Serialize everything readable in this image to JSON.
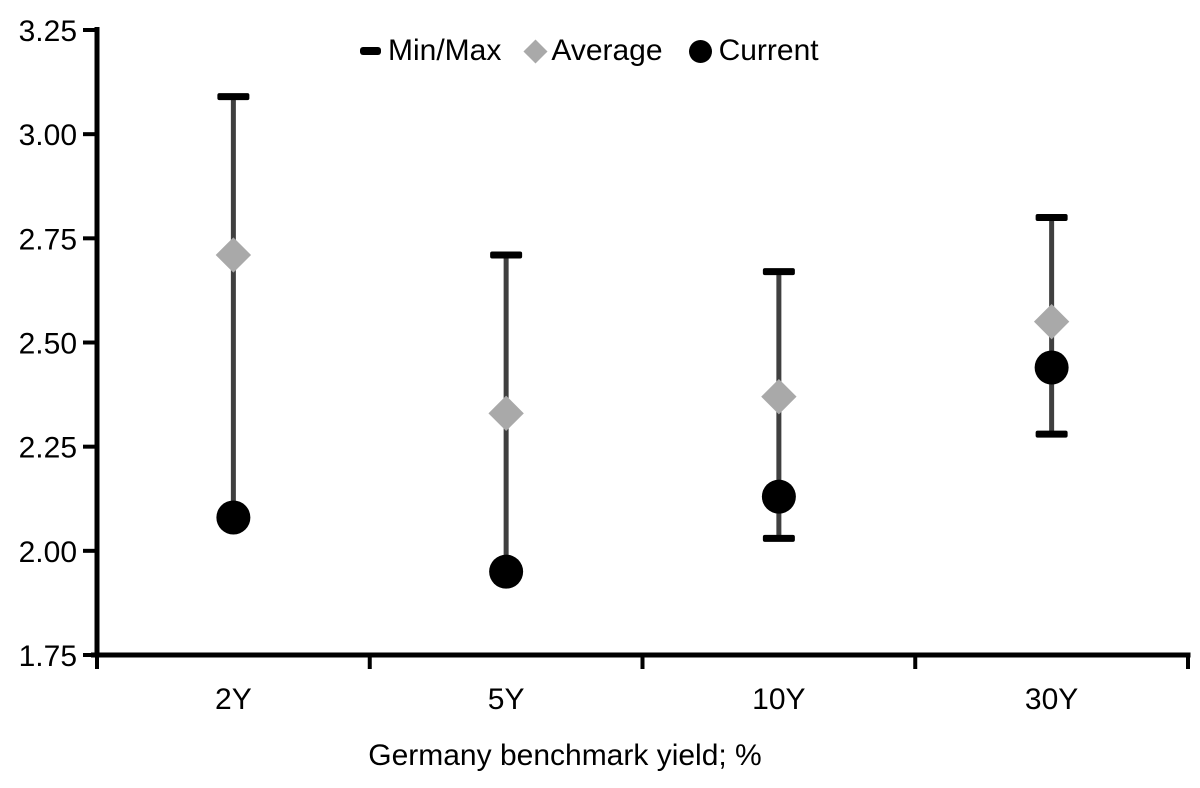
{
  "chart_data": {
    "type": "scatter",
    "variant": "min-max-range",
    "title": "",
    "xlabel": "Germany benchmark yield; %",
    "ylabel": "",
    "categories": [
      "2Y",
      "5Y",
      "10Y",
      "30Y"
    ],
    "series": [
      {
        "name": "Min/Max",
        "role": "range",
        "marker": "dash",
        "min": [
          2.08,
          1.95,
          2.03,
          2.28
        ],
        "max": [
          3.09,
          2.71,
          2.67,
          2.8
        ]
      },
      {
        "name": "Average",
        "role": "mean",
        "marker": "diamond",
        "values": [
          2.71,
          2.33,
          2.37,
          2.55
        ]
      },
      {
        "name": "Current",
        "role": "spot",
        "marker": "circle",
        "values": [
          2.08,
          1.95,
          2.13,
          2.44
        ]
      }
    ],
    "ylim": [
      1.75,
      3.25
    ],
    "ytick_step": 0.25,
    "ytick_labels": [
      "1.75",
      "2.00",
      "2.25",
      "2.50",
      "2.75",
      "3.00",
      "3.25"
    ],
    "legend_position": "top-center",
    "grid": false,
    "colors": {
      "range_line": "#3f3f3f",
      "cap": "#000000",
      "average": "#a9a9a9",
      "current": "#000000",
      "axis": "#000000",
      "text": "#000000"
    }
  }
}
